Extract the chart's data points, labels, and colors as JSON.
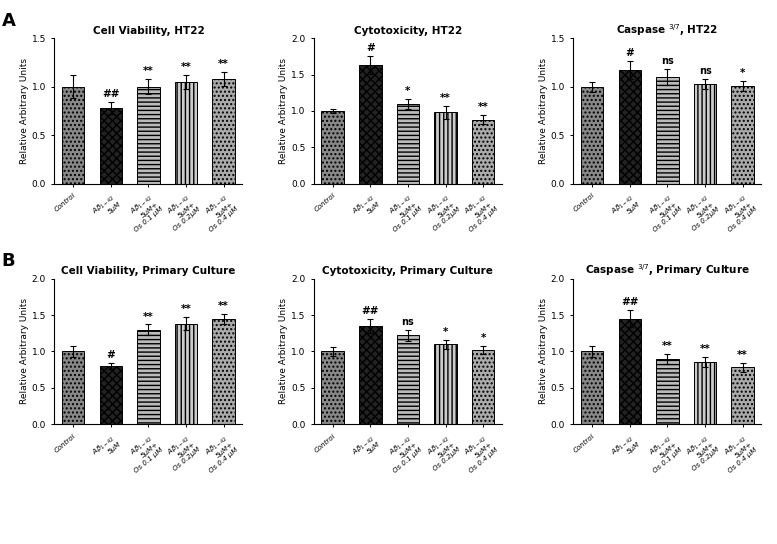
{
  "panel_A": {
    "cell_viability_HT22": {
      "title": "Cell Viability, HT22",
      "ylim": [
        0,
        1.5
      ],
      "yticks": [
        0.0,
        0.5,
        1.0,
        1.5
      ],
      "values": [
        1.0,
        0.78,
        1.0,
        1.05,
        1.08
      ],
      "errors": [
        0.12,
        0.06,
        0.08,
        0.07,
        0.07
      ],
      "annotations": [
        "",
        "##",
        "**",
        "**",
        "**"
      ]
    },
    "cytotoxicity_HT22": {
      "title": "Cytotoxicity, HT22",
      "ylim": [
        0,
        2.0
      ],
      "yticks": [
        0.0,
        0.5,
        1.0,
        1.5,
        2.0
      ],
      "values": [
        1.0,
        1.63,
        1.1,
        0.98,
        0.88
      ],
      "errors": [
        0.03,
        0.12,
        0.07,
        0.09,
        0.06
      ],
      "annotations": [
        "",
        "#",
        "*",
        "**",
        "**"
      ]
    },
    "caspase_HT22": {
      "title": "Caspase $^{3/7}$, HT22",
      "ylim": [
        0,
        1.5
      ],
      "yticks": [
        0.0,
        0.5,
        1.0,
        1.5
      ],
      "values": [
        1.0,
        1.17,
        1.1,
        1.03,
        1.01
      ],
      "errors": [
        0.05,
        0.09,
        0.08,
        0.05,
        0.05
      ],
      "annotations": [
        "",
        "#",
        "ns",
        "ns",
        "*"
      ]
    }
  },
  "panel_B": {
    "cell_viability_primary": {
      "title": "Cell Viability, Primary Culture",
      "ylim": [
        0,
        2.0
      ],
      "yticks": [
        0.0,
        0.5,
        1.0,
        1.5,
        2.0
      ],
      "values": [
        1.0,
        0.8,
        1.3,
        1.38,
        1.45
      ],
      "errors": [
        0.08,
        0.04,
        0.07,
        0.09,
        0.07
      ],
      "annotations": [
        "",
        "#",
        "**",
        "**",
        "**"
      ]
    },
    "cytotoxicity_primary": {
      "title": "Cytotoxicity, Primary Culture",
      "ylim": [
        0,
        2.0
      ],
      "yticks": [
        0.0,
        0.5,
        1.0,
        1.5,
        2.0
      ],
      "values": [
        1.0,
        1.35,
        1.22,
        1.1,
        1.02
      ],
      "errors": [
        0.06,
        0.1,
        0.07,
        0.06,
        0.05
      ],
      "annotations": [
        "",
        "##",
        "ns",
        "*",
        "*"
      ]
    },
    "caspase_primary": {
      "title": "Caspase $^{3/7}$, Primary Culture",
      "ylim": [
        0,
        2.0
      ],
      "yticks": [
        0.0,
        0.5,
        1.0,
        1.5,
        2.0
      ],
      "values": [
        1.0,
        1.45,
        0.9,
        0.85,
        0.78
      ],
      "errors": [
        0.07,
        0.12,
        0.07,
        0.07,
        0.06
      ],
      "annotations": [
        "",
        "##",
        "**",
        "**",
        "**"
      ]
    }
  },
  "ylabel": "Relative Arbitrary Units",
  "background_color": "#ffffff"
}
